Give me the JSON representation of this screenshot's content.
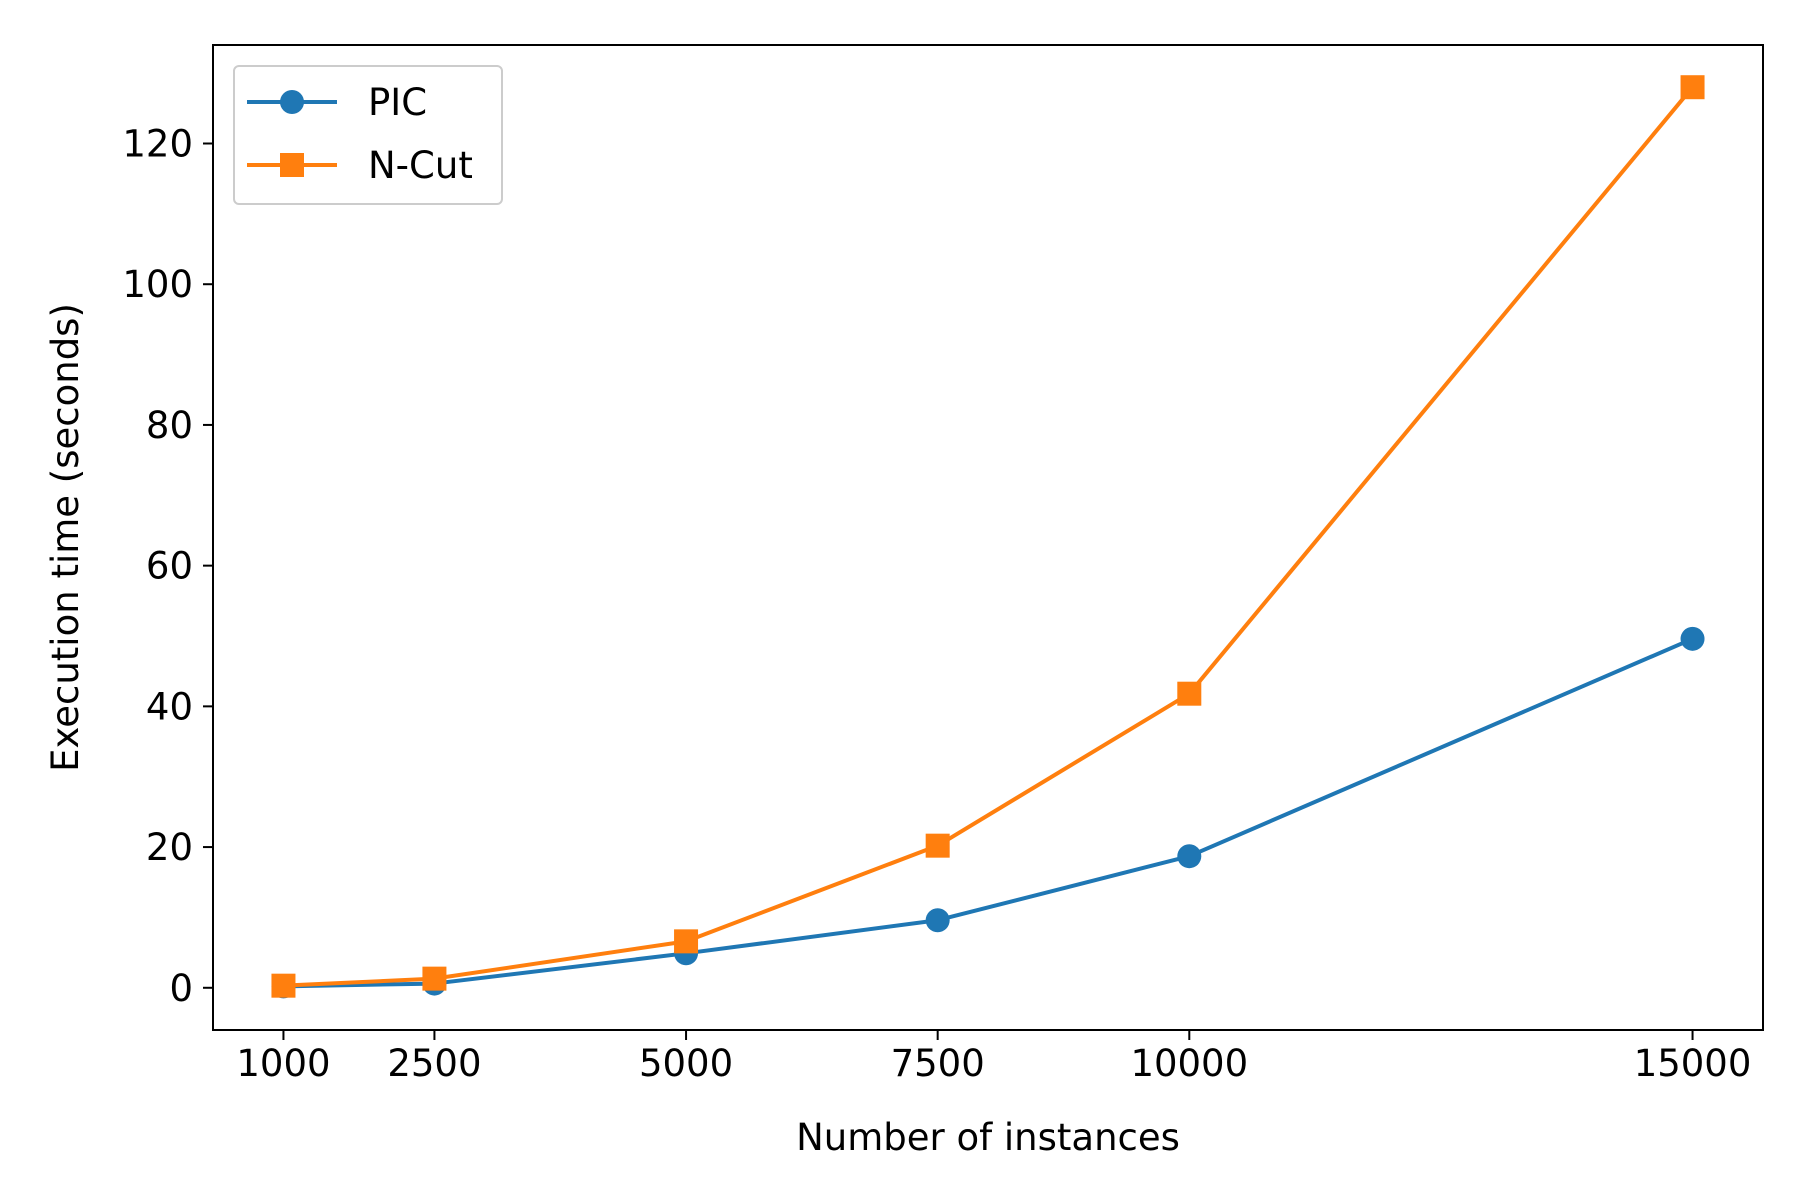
{
  "chart_data": {
    "type": "line",
    "title": "",
    "xlabel": "Number of instances",
    "ylabel": "Execution time (seconds)",
    "x": [
      1000,
      2500,
      5000,
      7500,
      10000,
      15000
    ],
    "x_tick_labels": [
      "1000",
      "2500",
      "5000",
      "7500",
      "10000",
      "15000"
    ],
    "y_ticks": [
      0,
      20,
      40,
      60,
      80,
      100,
      120
    ],
    "y_tick_labels": [
      "0",
      "20",
      "40",
      "60",
      "80",
      "100",
      "120"
    ],
    "xlim": [
      300,
      15700
    ],
    "ylim": [
      -6,
      134
    ],
    "grid": false,
    "legend_position": "top-left",
    "series": [
      {
        "name": "PIC",
        "marker": "circle",
        "color": "#1f77b4",
        "values": [
          0.2,
          0.6,
          4.9,
          9.6,
          18.7,
          49.6
        ]
      },
      {
        "name": "N-Cut",
        "marker": "square",
        "color": "#ff7f0e",
        "values": [
          0.3,
          1.3,
          6.6,
          20.2,
          41.8,
          128.0
        ]
      }
    ]
  }
}
